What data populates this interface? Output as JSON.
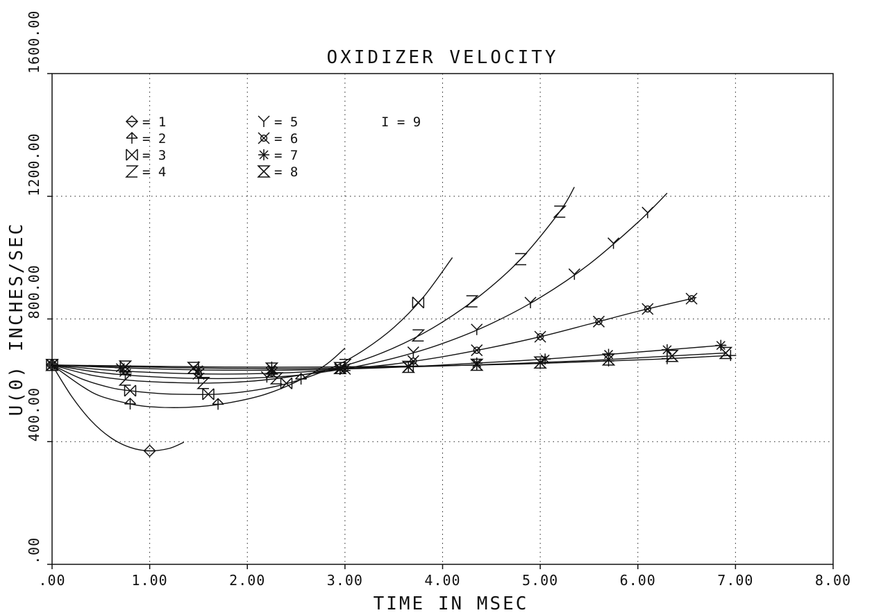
{
  "chart_data": {
    "type": "line",
    "title": "OXIDIZER VELOCITY",
    "xlabel": "TIME IN MSEC",
    "ylabel": "U(0) INCHES/SEC",
    "xlim": [
      0,
      8
    ],
    "ylim": [
      0,
      1600
    ],
    "x_ticks": [
      ".00",
      "1.00",
      "2.00",
      "3.00",
      "4.00",
      "5.00",
      "6.00",
      "7.00",
      "8.00"
    ],
    "y_ticks": [
      ".00",
      "400.00",
      "800.00",
      "1200.00",
      "1600.00"
    ],
    "grid": true,
    "legend_position": "top-left",
    "legend_extra": "I = 9",
    "series": [
      {
        "name": "1",
        "marker": "diamond",
        "points": [
          [
            0,
            650
          ],
          [
            0.2,
            548
          ],
          [
            0.4,
            468
          ],
          [
            0.6,
            413
          ],
          [
            0.8,
            381
          ],
          [
            1.0,
            370
          ],
          [
            1.2,
            378
          ],
          [
            1.35,
            398
          ]
        ],
        "marked_x": [
          0,
          1.0
        ]
      },
      {
        "name": "2",
        "marker": "arrow",
        "points": [
          [
            0,
            650
          ],
          [
            0.3,
            582
          ],
          [
            0.5,
            548
          ],
          [
            0.8,
            523
          ],
          [
            1.0,
            514
          ],
          [
            1.3,
            511
          ],
          [
            1.6,
            517
          ],
          [
            1.9,
            532
          ],
          [
            2.2,
            556
          ],
          [
            2.5,
            595
          ],
          [
            2.8,
            650
          ],
          [
            3.0,
            705
          ]
        ],
        "marked_x": [
          0,
          0.8,
          1.7,
          2.55
        ]
      },
      {
        "name": "3",
        "marker": "x",
        "points": [
          [
            0,
            650
          ],
          [
            0.3,
            605
          ],
          [
            0.6,
            576
          ],
          [
            0.8,
            566
          ],
          [
            1.1,
            557
          ],
          [
            1.4,
            554
          ],
          [
            1.7,
            555
          ],
          [
            2.0,
            564
          ],
          [
            2.3,
            581
          ],
          [
            2.6,
            608
          ],
          [
            2.9,
            646
          ],
          [
            3.2,
            700
          ],
          [
            3.5,
            772
          ],
          [
            3.8,
            870
          ],
          [
            4.1,
            1000
          ]
        ],
        "marked_x": [
          0,
          0.8,
          1.6,
          2.4,
          3.75
        ]
      },
      {
        "name": "4",
        "marker": "z",
        "points": [
          [
            0,
            650
          ],
          [
            0.4,
            617
          ],
          [
            0.8,
            600
          ],
          [
            1.2,
            593
          ],
          [
            1.6,
            591
          ],
          [
            2.0,
            596
          ],
          [
            2.4,
            610
          ],
          [
            2.8,
            632
          ],
          [
            3.2,
            668
          ],
          [
            3.6,
            720
          ],
          [
            4.0,
            790
          ],
          [
            4.4,
            880
          ],
          [
            4.8,
            995
          ],
          [
            5.2,
            1150
          ],
          [
            5.35,
            1230
          ]
        ],
        "marked_x": [
          0,
          0.75,
          1.55,
          2.3,
          3.0,
          3.75,
          4.3,
          4.8,
          5.2
        ]
      },
      {
        "name": "5",
        "marker": "y",
        "points": [
          [
            0,
            650
          ],
          [
            0.5,
            625
          ],
          [
            1.0,
            612
          ],
          [
            1.5,
            606
          ],
          [
            2.0,
            607
          ],
          [
            2.5,
            616
          ],
          [
            3.0,
            638
          ],
          [
            3.5,
            672
          ],
          [
            4.0,
            720
          ],
          [
            4.5,
            785
          ],
          [
            5.0,
            870
          ],
          [
            5.5,
            978
          ],
          [
            6.0,
            1115
          ],
          [
            6.3,
            1210
          ]
        ],
        "marked_x": [
          0,
          0.75,
          1.5,
          2.2,
          2.95,
          3.7,
          4.35,
          4.9,
          5.35,
          5.75,
          6.1
        ]
      },
      {
        "name": "6",
        "marker": "circle-x",
        "points": [
          [
            0,
            650
          ],
          [
            0.5,
            635
          ],
          [
            1.0,
            626
          ],
          [
            1.5,
            621
          ],
          [
            2.0,
            621
          ],
          [
            2.5,
            626
          ],
          [
            3.0,
            637
          ],
          [
            3.5,
            653
          ],
          [
            4.0,
            677
          ],
          [
            4.5,
            707
          ],
          [
            5.0,
            742
          ],
          [
            5.5,
            783
          ],
          [
            6.0,
            825
          ],
          [
            6.6,
            870
          ]
        ],
        "marked_x": [
          0,
          0.75,
          1.5,
          2.25,
          3.0,
          3.7,
          4.35,
          5.0,
          5.6,
          6.1,
          6.55
        ]
      },
      {
        "name": "7",
        "marker": "asterisk",
        "points": [
          [
            0,
            650
          ],
          [
            0.7,
            641
          ],
          [
            1.5,
            634
          ],
          [
            2.3,
            633
          ],
          [
            3.0,
            637
          ],
          [
            3.7,
            645
          ],
          [
            4.4,
            657
          ],
          [
            5.0,
            668
          ],
          [
            5.6,
            682
          ],
          [
            6.2,
            697
          ],
          [
            6.9,
            715
          ]
        ],
        "marked_x": [
          0,
          0.7,
          1.5,
          2.25,
          2.95,
          3.65,
          4.35,
          5.05,
          5.7,
          6.3,
          6.85
        ]
      },
      {
        "name": "8",
        "marker": "hourglass",
        "points": [
          [
            0,
            650
          ],
          [
            0.7,
            645
          ],
          [
            1.5,
            640
          ],
          [
            2.3,
            638
          ],
          [
            3.0,
            640
          ],
          [
            3.7,
            644
          ],
          [
            4.4,
            651
          ],
          [
            5.0,
            658
          ],
          [
            5.6,
            666
          ],
          [
            6.2,
            677
          ],
          [
            6.9,
            689
          ]
        ],
        "marked_x": [
          0,
          0.75,
          1.45,
          2.25,
          2.95,
          3.65,
          4.35,
          5.0,
          5.7,
          6.35,
          6.9
        ]
      },
      {
        "name": "9",
        "marker": "plus",
        "points": [
          [
            0,
            650
          ],
          [
            0.7,
            647
          ],
          [
            1.5,
            644
          ],
          [
            2.3,
            643
          ],
          [
            3.0,
            644
          ],
          [
            3.7,
            646
          ],
          [
            4.4,
            650
          ],
          [
            5.0,
            655
          ],
          [
            5.6,
            662
          ],
          [
            6.2,
            669
          ],
          [
            6.95,
            681
          ]
        ],
        "marked_x": [
          0,
          0.7,
          1.5,
          2.25,
          3.0,
          3.7,
          4.35,
          5.0,
          5.7,
          6.3,
          6.95
        ]
      }
    ]
  }
}
